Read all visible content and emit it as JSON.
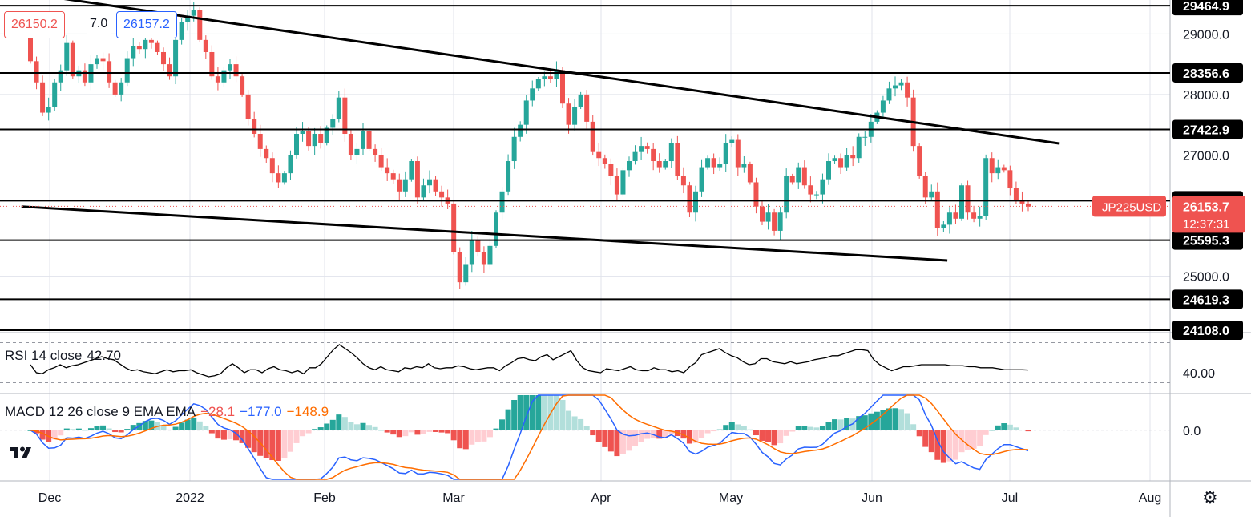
{
  "colors": {
    "up": "#26a69a",
    "down": "#ef5350",
    "grid": "#e0e3eb",
    "line": "#000000",
    "rsi": "#000000",
    "macd": "#2962ff",
    "signal": "#ff6d00",
    "hist_up_strong": "#26a69a",
    "hist_up_weak": "#b2dfdb",
    "hist_down_strong": "#ef5350",
    "hist_down_weak": "#ffcdd2",
    "price_tag": "#ef5350"
  },
  "header": {
    "bid": "26150.2",
    "spread": "7.0",
    "ask": "26157.2"
  },
  "symbol_tag": "JP225USD",
  "last_price": "26153.7",
  "countdown": "12:37:31",
  "indicators": {
    "rsi": {
      "label": "RSI 14 close",
      "value": "42.70",
      "axis_label": "40.00"
    },
    "macd": {
      "label": "MACD 12 26 close 9 EMA EMA",
      "hist": "−28.1",
      "macd": "−177.0",
      "signal": "−148.9",
      "axis_label": "0.0"
    }
  },
  "chart_data": {
    "type": "candlestick",
    "x_ticks": [
      "Dec",
      "2022",
      "Feb",
      "Mar",
      "Apr",
      "May",
      "Jun",
      "Jul",
      "Aug"
    ],
    "y_ticks": [
      "29000.0",
      "28000.0",
      "27000.0",
      "25000.0"
    ],
    "horizontal_levels": [
      "29464.9",
      "28356.6",
      "27422.9",
      "26246.0",
      "25595.3",
      "24619.3",
      "24108.0"
    ],
    "ylim": [
      24108,
      29560
    ],
    "trend_lines": [
      {
        "from": {
          "date": "2021-11-25",
          "price": 29660
        },
        "to": {
          "date": "2022-07-12",
          "price": 27190
        }
      },
      {
        "from": {
          "date": "2021-11-23",
          "price": 26150
        },
        "to": {
          "date": "2022-06-17",
          "price": 25260
        }
      }
    ],
    "candles_close": [
      28550,
      28200,
      27700,
      27800,
      28200,
      28400,
      28850,
      28300,
      28400,
      28200,
      28500,
      28600,
      28550,
      28200,
      28000,
      28200,
      28600,
      28800,
      28750,
      28900,
      28850,
      28700,
      28500,
      28300,
      28900,
      29200,
      29300,
      29400,
      28900,
      28700,
      28300,
      28200,
      28400,
      28500,
      28300,
      28000,
      27600,
      27350,
      27100,
      26950,
      26700,
      26550,
      26700,
      27000,
      27350,
      27400,
      27150,
      27350,
      27200,
      27450,
      27600,
      27950,
      27350,
      27000,
      27100,
      27400,
      27100,
      27000,
      26800,
      26700,
      26600,
      26400,
      26600,
      26900,
      26300,
      26500,
      26600,
      26400,
      26300,
      26200,
      25400,
      24900,
      25200,
      25600,
      25400,
      25200,
      25500,
      26050,
      26400,
      26900,
      27300,
      27500,
      27900,
      28100,
      28250,
      28300,
      28250,
      28400,
      27850,
      27500,
      27800,
      28000,
      27550,
      27050,
      26950,
      26850,
      26650,
      26350,
      26750,
      26900,
      27050,
      27150,
      27100,
      26900,
      26800,
      26900,
      27200,
      26650,
      26500,
      26050,
      26400,
      26800,
      26950,
      26800,
      26850,
      27200,
      27250,
      26800,
      26850,
      26550,
      26150,
      25900,
      26050,
      25750,
      26050,
      26650,
      26550,
      26800,
      26500,
      26350,
      26350,
      26600,
      26900,
      26950,
      26800,
      27000,
      26950,
      27300,
      27300,
      27550,
      27700,
      27900,
      28100,
      28150,
      28200,
      27950,
      27150,
      26650,
      26300,
      26400,
      25800,
      25850,
      26050,
      25950,
      26500,
      26050,
      25950,
      26000,
      26950,
      26700,
      26800,
      26750,
      26450,
      26250,
      26200,
      26150
    ],
    "rsi": {
      "values": [
        48,
        40,
        39,
        43,
        45,
        48,
        45,
        47,
        48,
        50,
        52,
        54,
        56,
        54,
        53,
        49,
        45,
        42,
        43,
        41,
        40,
        39,
        41,
        43,
        41,
        42,
        42,
        43,
        40,
        38,
        36,
        37,
        39,
        45,
        49,
        45,
        40,
        43,
        43,
        40,
        44,
        46,
        43,
        42,
        40,
        42,
        39,
        45,
        45,
        49,
        56,
        63,
        68,
        64,
        60,
        55,
        49,
        45,
        43,
        46,
        43,
        42,
        41,
        45,
        44,
        46,
        45,
        49,
        45,
        44,
        45,
        45,
        47,
        46,
        44,
        43,
        44,
        45,
        45,
        42,
        47,
        50,
        54,
        55,
        53,
        52,
        56,
        58,
        53,
        56,
        59,
        62,
        52,
        45,
        42,
        41,
        40,
        44,
        43,
        42,
        44,
        46,
        43,
        42,
        42,
        45,
        43,
        43,
        41,
        42,
        40,
        46,
        50,
        58,
        60,
        62,
        64,
        60,
        57,
        55,
        51,
        48,
        49,
        54,
        54,
        51,
        50,
        49,
        51,
        49,
        50,
        51,
        53,
        54,
        55,
        57,
        57,
        59,
        61,
        63,
        63,
        62,
        53,
        48,
        45,
        42,
        44,
        46,
        46,
        47,
        48,
        48,
        48,
        48,
        48,
        47,
        47,
        47,
        46,
        46,
        45,
        45,
        45,
        44,
        43,
        43,
        43,
        43,
        42.7
      ],
      "ylim": [
        20,
        80
      ],
      "band": [
        30,
        70
      ]
    },
    "macd": {
      "macd_last": -177.0,
      "signal_last": -148.9,
      "hist_last": -28.1,
      "ylim": [
        -350,
        250
      ]
    }
  }
}
